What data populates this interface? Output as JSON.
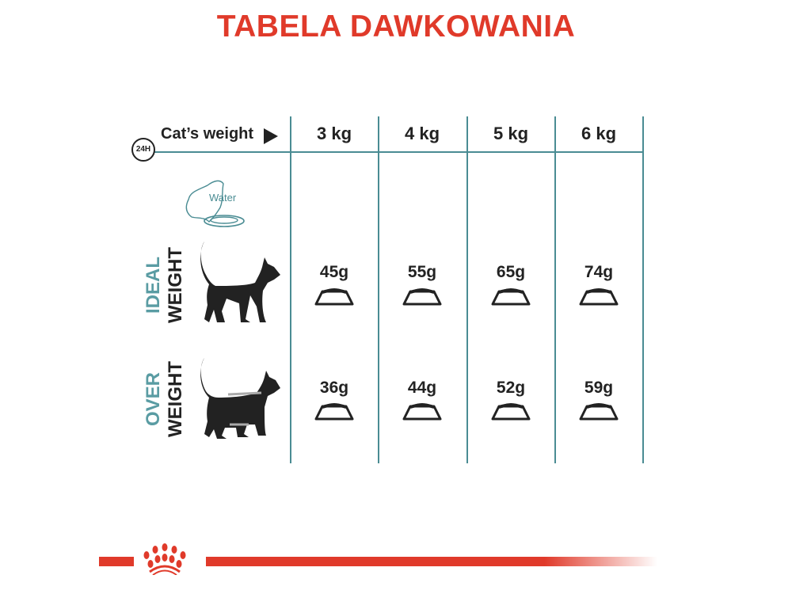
{
  "title": "TABELA DAWKOWANIA",
  "header": {
    "weight_label": "Cat’s weight",
    "clock_label": "24H",
    "columns": [
      "3 kg",
      "4 kg",
      "5 kg",
      "6 kg"
    ]
  },
  "water_label": "Water",
  "rows": [
    {
      "label_top": "IDEAL",
      "label_bottom": "WEIGHT",
      "values": [
        "45g",
        "55g",
        "65g",
        "74g"
      ]
    },
    {
      "label_top": "OVER",
      "label_bottom": "WEIGHT",
      "values": [
        "36g",
        "44g",
        "52g",
        "59g"
      ]
    }
  ],
  "colors": {
    "brand_red": "#e03a2a",
    "teal": "#4a8c93",
    "text": "#222222"
  }
}
